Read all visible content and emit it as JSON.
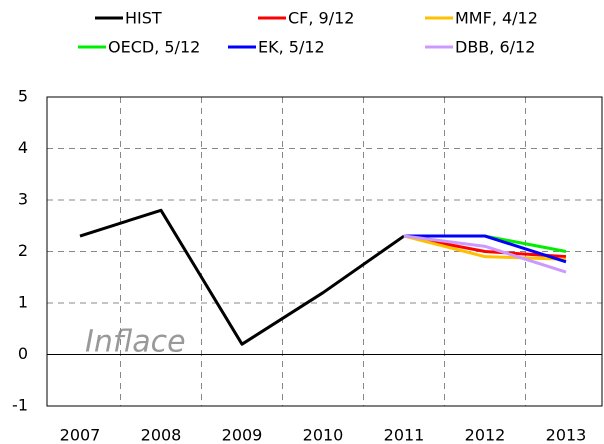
{
  "chart_data": {
    "type": "line",
    "annotation": "Inflace",
    "categories": [
      "2007",
      "2008",
      "2009",
      "2010",
      "2011",
      "2012",
      "2013"
    ],
    "series": [
      {
        "name": "HIST",
        "color": "#000000",
        "values": [
          2.3,
          2.8,
          0.2,
          1.2,
          2.3,
          null,
          null
        ]
      },
      {
        "name": "CF, 9/12",
        "color": "#ff0000",
        "values": [
          null,
          null,
          null,
          null,
          2.3,
          2.0,
          1.9
        ]
      },
      {
        "name": "MMF, 4/12",
        "color": "#ffc000",
        "values": [
          null,
          null,
          null,
          null,
          2.3,
          1.9,
          1.85
        ]
      },
      {
        "name": "OECD, 5/12",
        "color": "#00ee00",
        "values": [
          null,
          null,
          null,
          null,
          2.3,
          2.3,
          2.0
        ]
      },
      {
        "name": "EK, 5/12",
        "color": "#0000ff",
        "values": [
          null,
          null,
          null,
          null,
          2.3,
          2.3,
          1.8
        ]
      },
      {
        "name": "DBB, 6/12",
        "color": "#cc99ff",
        "values": [
          null,
          null,
          null,
          null,
          2.3,
          2.1,
          1.6
        ]
      }
    ],
    "ylim": [
      -1,
      5
    ],
    "yticks": [
      -1,
      0,
      1,
      2,
      3,
      4,
      5
    ],
    "grid": true
  }
}
